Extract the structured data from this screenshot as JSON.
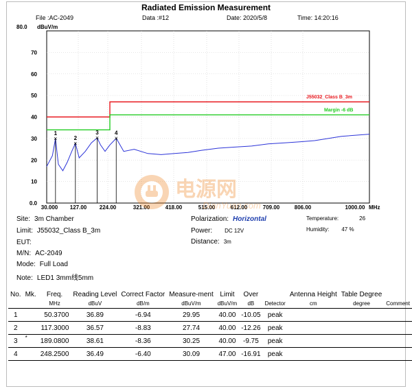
{
  "header": {
    "title": "Radiated Emission Measurement",
    "file": "File :AC-2049",
    "data": "Data :#12",
    "date": "Date: 2020/5/8",
    "time": "Time: 14:20:16",
    "ymax_label": "80.0",
    "yunit": "dBuV/m"
  },
  "chart_data": {
    "type": "line",
    "xlabel": "MHz",
    "ylabel": "dBuV/m",
    "xlim": [
      30,
      1000
    ],
    "ylim": [
      0,
      80
    ],
    "x_ticks": [
      "30.000",
      "127.00",
      "224.00",
      "321.00",
      "418.00",
      "515.00",
      "612.00",
      "709.00",
      "806.00",
      "1000.00"
    ],
    "y_ticks": [
      "0.0",
      "10",
      "20",
      "30",
      "40",
      "50",
      "60",
      "70"
    ],
    "grid": true,
    "series": [
      {
        "name": "J55032_Class B_3m",
        "color": "#e8151b",
        "x": [
          30,
          230,
          230,
          1000
        ],
        "y": [
          40,
          40,
          47,
          47
        ]
      },
      {
        "name": "Margin -6 dB",
        "color": "#22cc22",
        "x": [
          30,
          230,
          230,
          1000
        ],
        "y": [
          34,
          34,
          41,
          41
        ]
      },
      {
        "color": "#2a32d8",
        "x": [
          30,
          40,
          50.37,
          60,
          75,
          90,
          105,
          117.3,
          130,
          150,
          170,
          189.08,
          200,
          215,
          230,
          248.25,
          270,
          300,
          340,
          380,
          420,
          460,
          500,
          550,
          600,
          650,
          700,
          750,
          800,
          850,
          900,
          950,
          1000
        ],
        "y": [
          17,
          22,
          29.95,
          18,
          15,
          19,
          24,
          27.74,
          21,
          24,
          28,
          30.25,
          27,
          24,
          27,
          30.09,
          24,
          25,
          23,
          22.5,
          23,
          23.5,
          24.5,
          25.5,
          26,
          26.5,
          27.5,
          28,
          28.5,
          29,
          30,
          31,
          32
        ]
      }
    ],
    "markers": [
      {
        "label": "1",
        "x": 50.37,
        "y": 29.95
      },
      {
        "label": "2",
        "x": 117.3,
        "y": 27.74
      },
      {
        "label": "3",
        "x": 189.08,
        "y": 30.25
      },
      {
        "label": "4",
        "x": 248.25,
        "y": 30.09
      }
    ]
  },
  "limit_label": "J55032_Class B_3m",
  "margin_label": "Margin -6 dB",
  "info": {
    "site_label": "Site:",
    "site": "3m Chamber",
    "limit_label": "Limit:",
    "limit": "J55032_Class B_3m",
    "eut_label": "EUT:",
    "mn_label": "M/N:",
    "mn": "AC-2049",
    "mode_label": "Mode:",
    "mode": "Full Load",
    "note_label": "Note:",
    "note": "LED1 3mm线5mm",
    "polarization_label": "Polarization:",
    "polarization": "Horizontal",
    "power_label": "Power:",
    "power": "DC 12V",
    "distance_label": "Distance:",
    "distance": "3m",
    "temperature_label": "Temperature:",
    "temperature": "26",
    "humidity_label": "Humidity:",
    "humidity": "47 %"
  },
  "table": {
    "headers": [
      "No.",
      "Mk.",
      "Freq.",
      "Reading Level",
      "Correct Factor",
      "Measure-ment",
      "Limit",
      "Over",
      "",
      "Antenna Height",
      "Table Degree",
      ""
    ],
    "units": [
      "",
      "",
      "MHz",
      "dBuV",
      "dB/m",
      "dBuV/m",
      "dBuV/m",
      "dB",
      "Detector",
      "cm",
      "degree",
      "Comment"
    ],
    "rows": [
      [
        "1",
        "",
        "50.3700",
        "36.89",
        "-6.94",
        "29.95",
        "40.00",
        "-10.05",
        "peak",
        "",
        "",
        ""
      ],
      [
        "2",
        "",
        "117.3000",
        "36.57",
        "-8.83",
        "27.74",
        "40.00",
        "-12.26",
        "peak",
        "",
        "",
        ""
      ],
      [
        "3",
        "*",
        "189.0800",
        "38.61",
        "-8.36",
        "30.25",
        "40.00",
        "-9.75",
        "peak",
        "",
        "",
        ""
      ],
      [
        "4",
        "",
        "248.2500",
        "36.49",
        "-6.40",
        "30.09",
        "47.00",
        "-16.91",
        "peak",
        "",
        "",
        ""
      ]
    ]
  },
  "watermark": {
    "text": "电源网",
    "sub": "DianYuan.com",
    "color": "#f08a2a"
  }
}
